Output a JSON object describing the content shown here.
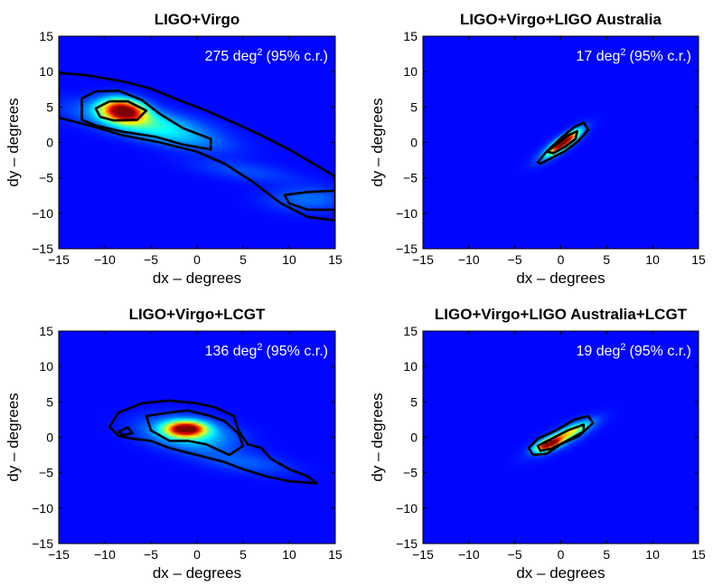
{
  "figure": {
    "colors": {
      "background": "#0a28d6",
      "contour": "#000000",
      "annotation": "#ffffff"
    },
    "colormap": "jet"
  },
  "chart_data": [
    {
      "type": "heatmap",
      "title": "LIGO+Virgo",
      "xlabel": "dx – degrees",
      "ylabel": "dy – degrees",
      "xlim": [
        -15,
        15
      ],
      "ylim": [
        -15,
        15
      ],
      "xticks": [
        "−15",
        "−10",
        "−5",
        "0",
        "5",
        "10",
        "15"
      ],
      "yticks": [
        "15",
        "10",
        "5",
        "0",
        "−5",
        "−10",
        "−15"
      ],
      "annotation": {
        "value": "275",
        "unit": "deg",
        "sup": "2",
        "suffix": "(95% c.r.)"
      },
      "peak": {
        "x": -8,
        "y": 4.5
      },
      "blobs": [
        {
          "x": -8,
          "y": 4.5,
          "sx": 1.6,
          "sy": 1.1,
          "rho": -0.2,
          "a": 1.0
        },
        {
          "x": -6,
          "y": 3.0,
          "sx": 4.5,
          "sy": 1.6,
          "rho": -0.6,
          "a": 0.3
        },
        {
          "x": -2,
          "y": 0.5,
          "sx": 4.0,
          "sy": 1.3,
          "rho": -0.6,
          "a": 0.12
        },
        {
          "x": 12,
          "y": -8.0,
          "sx": 3.0,
          "sy": 1.2,
          "rho": 0.0,
          "a": 0.12
        },
        {
          "x": 5,
          "y": -4.0,
          "sx": 4.0,
          "sy": 1.2,
          "rho": -0.6,
          "a": 0.08
        }
      ],
      "contours": [
        [
          [
            -15,
            9.8
          ],
          [
            -12,
            9.5
          ],
          [
            -8,
            8.6
          ],
          [
            -5,
            7.6
          ],
          [
            -2,
            6
          ],
          [
            1,
            4.5
          ],
          [
            4,
            2.8
          ],
          [
            7,
            1
          ],
          [
            10,
            -1
          ],
          [
            12,
            -2.5
          ],
          [
            15,
            -4.8
          ],
          [
            15,
            -11
          ],
          [
            12,
            -10.5
          ],
          [
            9,
            -8.5
          ],
          [
            6,
            -5.5
          ],
          [
            3,
            -3
          ],
          [
            0,
            -1.3
          ],
          [
            -4,
            0
          ],
          [
            -8,
            1
          ],
          [
            -12,
            2.5
          ],
          [
            -15,
            3.5
          ]
        ],
        [
          [
            -12.5,
            6.2
          ],
          [
            -11,
            7.2
          ],
          [
            -8.5,
            7.3
          ],
          [
            -6,
            6
          ],
          [
            -4,
            4
          ],
          [
            -1.5,
            2
          ],
          [
            1.5,
            0.5
          ],
          [
            1.5,
            -1
          ],
          [
            -1.5,
            -0.3
          ],
          [
            -4.5,
            0.8
          ],
          [
            -8,
            1.5
          ],
          [
            -11,
            2.4
          ],
          [
            -12.5,
            3.2
          ]
        ],
        [
          [
            -11,
            4.8
          ],
          [
            -9.5,
            5.8
          ],
          [
            -7.5,
            5.8
          ],
          [
            -5.5,
            4.5
          ],
          [
            -6.5,
            3.2
          ],
          [
            -9,
            3.1
          ],
          [
            -10.5,
            3.6
          ]
        ],
        [
          [
            9.5,
            -7.4
          ],
          [
            12,
            -7
          ],
          [
            15,
            -6.8
          ],
          [
            15,
            -9.5
          ],
          [
            12,
            -9.5
          ],
          [
            10,
            -8.6
          ]
        ]
      ]
    },
    {
      "type": "heatmap",
      "title": "LIGO+Virgo+LIGO Australia",
      "xlabel": "dx – degrees",
      "ylabel": "dy – degrees",
      "xlim": [
        -15,
        15
      ],
      "ylim": [
        -15,
        15
      ],
      "xticks": [
        "−15",
        "−10",
        "−5",
        "0",
        "5",
        "10",
        "15"
      ],
      "yticks": [
        "15",
        "10",
        "5",
        "0",
        "−5",
        "−10",
        "−15"
      ],
      "annotation": {
        "value": "17",
        "unit": "deg",
        "sup": "2",
        "suffix": "(95% c.r.)"
      },
      "peak": {
        "x": 0.3,
        "y": 0
      },
      "blobs": [
        {
          "x": 0.3,
          "y": 0.0,
          "sx": 1.0,
          "sy": 1.0,
          "rho": 0.85,
          "a": 1.0
        },
        {
          "x": 0.0,
          "y": -0.3,
          "sx": 1.6,
          "sy": 1.5,
          "rho": 0.85,
          "a": 0.25
        }
      ],
      "contours": [
        [
          [
            -2.5,
            -2.8
          ],
          [
            -1.5,
            -1.2
          ],
          [
            0,
            0.6
          ],
          [
            1.5,
            2.2
          ],
          [
            2.5,
            2.8
          ],
          [
            3,
            1.8
          ],
          [
            2,
            0.3
          ],
          [
            0.5,
            -1.2
          ],
          [
            -1,
            -2.2
          ],
          [
            -2.2,
            -3
          ]
        ],
        [
          [
            -1.5,
            -1.3
          ],
          [
            -0.5,
            -0.3
          ],
          [
            0.8,
            1
          ],
          [
            1.8,
            1.6
          ],
          [
            1.6,
            0.5
          ],
          [
            0.5,
            -0.6
          ],
          [
            -0.8,
            -1.5
          ]
        ]
      ]
    },
    {
      "type": "heatmap",
      "title": "LIGO+Virgo+LCGT",
      "xlabel": "dx – degrees",
      "ylabel": "dy – degrees",
      "xlim": [
        -15,
        15
      ],
      "ylim": [
        -15,
        15
      ],
      "xticks": [
        "−15",
        "−10",
        "−5",
        "0",
        "5",
        "10",
        "15"
      ],
      "yticks": [
        "15",
        "10",
        "5",
        "0",
        "−5",
        "−10",
        "−15"
      ],
      "annotation": {
        "value": "136",
        "unit": "deg",
        "sup": "2",
        "suffix": "(95% c.r.)"
      },
      "peak": {
        "x": -1.2,
        "y": 1.2
      },
      "blobs": [
        {
          "x": -1.2,
          "y": 1.2,
          "sx": 1.4,
          "sy": 0.7,
          "rho": 0.0,
          "a": 1.0
        },
        {
          "x": -1.0,
          "y": 0.5,
          "sx": 3.2,
          "sy": 1.5,
          "rho": -0.3,
          "a": 0.3
        },
        {
          "x": 5.0,
          "y": -3.5,
          "sx": 3.5,
          "sy": 1.2,
          "rho": -0.5,
          "a": 0.1
        }
      ],
      "contours": [
        [
          [
            -9.5,
            1.5
          ],
          [
            -8.5,
            3.5
          ],
          [
            -6,
            4.8
          ],
          [
            -3,
            5.2
          ],
          [
            0,
            4.8
          ],
          [
            2,
            4.2
          ],
          [
            4,
            3
          ],
          [
            4.5,
            1
          ],
          [
            5.5,
            -1
          ],
          [
            7,
            -1.5
          ],
          [
            8,
            -3
          ],
          [
            10,
            -4.5
          ],
          [
            12,
            -5.5
          ],
          [
            13,
            -6.5
          ],
          [
            10,
            -6.2
          ],
          [
            7.5,
            -5.5
          ],
          [
            5,
            -4.5
          ],
          [
            3,
            -3.5
          ],
          [
            0,
            -2.5
          ],
          [
            -3,
            -1.5
          ],
          [
            -5,
            -0.5
          ],
          [
            -7,
            -0.2
          ],
          [
            -8.5,
            0.2
          ]
        ],
        [
          [
            -5.5,
            3
          ],
          [
            -3,
            3.5
          ],
          [
            -1,
            3.8
          ],
          [
            1.5,
            3
          ],
          [
            3,
            2.3
          ],
          [
            4.5,
            0.5
          ],
          [
            5,
            -1.2
          ],
          [
            3.5,
            -2.5
          ],
          [
            1,
            -1
          ],
          [
            -1,
            -0.5
          ],
          [
            -3,
            -0.5
          ],
          [
            -5,
            1
          ]
        ],
        [
          [
            -8.5,
            0.8
          ],
          [
            -7.5,
            1.4
          ],
          [
            -7,
            0.6
          ],
          [
            -8,
            0.3
          ]
        ]
      ]
    },
    {
      "type": "heatmap",
      "title": "LIGO+Virgo+LIGO Australia+LCGT",
      "xlabel": "dx – degrees",
      "ylabel": "dy – degrees",
      "xlim": [
        -15,
        15
      ],
      "ylim": [
        -15,
        15
      ],
      "xticks": [
        "−15",
        "−10",
        "−5",
        "0",
        "5",
        "10",
        "15"
      ],
      "yticks": [
        "15",
        "10",
        "5",
        "0",
        "−5",
        "−10",
        "−15"
      ],
      "annotation": {
        "value": "19",
        "unit": "deg",
        "sup": "2",
        "suffix": "(95% c.r.)"
      },
      "peak": {
        "x": -1.3,
        "y": -1.0
      },
      "blobs": [
        {
          "x": -1.3,
          "y": -1.0,
          "sx": 0.9,
          "sy": 0.6,
          "rho": 0.6,
          "a": 1.0
        },
        {
          "x": 0.8,
          "y": 0.6,
          "sx": 1.5,
          "sy": 1.0,
          "rho": 0.85,
          "a": 0.45
        },
        {
          "x": 0.3,
          "y": 0.0,
          "sx": 2.2,
          "sy": 1.6,
          "rho": 0.8,
          "a": 0.18
        }
      ],
      "contours": [
        [
          [
            -3.5,
            -1.5
          ],
          [
            -2.5,
            -0.2
          ],
          [
            -0.5,
            1
          ],
          [
            1.5,
            2.5
          ],
          [
            3,
            3
          ],
          [
            3.5,
            2
          ],
          [
            2,
            0.2
          ],
          [
            0,
            -1
          ],
          [
            -1.5,
            -2.3
          ],
          [
            -3,
            -2.5
          ]
        ],
        [
          [
            -2.5,
            -1.2
          ],
          [
            -1,
            -0.2
          ],
          [
            0.8,
            1
          ],
          [
            2.5,
            1.8
          ],
          [
            2.5,
            0.8
          ],
          [
            0.8,
            -0.4
          ],
          [
            -1,
            -1.6
          ],
          [
            -2.2,
            -1.9
          ]
        ]
      ]
    }
  ]
}
